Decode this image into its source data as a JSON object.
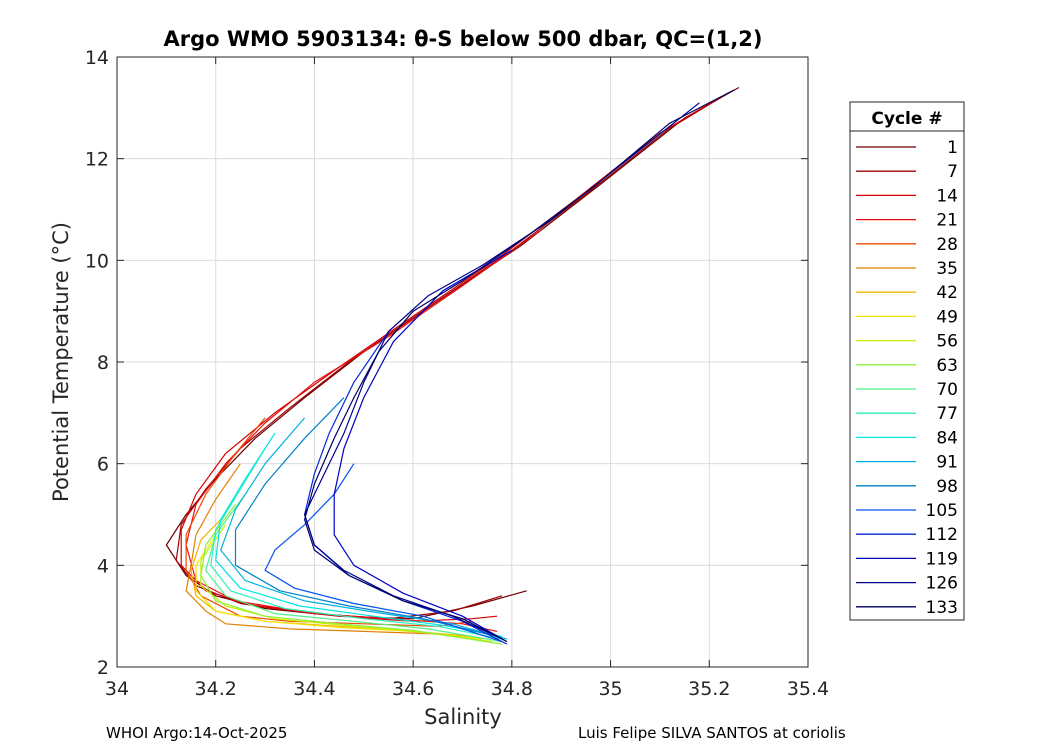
{
  "chart_data": {
    "type": "line",
    "title": "Argo WMO 5903134: θ-S below 500 dbar,  QC=(1,2)",
    "xlabel": "Salinity",
    "ylabel": "Potential Temperature (°C)",
    "xlim": [
      34,
      35.4
    ],
    "ylim": [
      2,
      14
    ],
    "xticks": [
      "34",
      "34.2",
      "34.4",
      "34.6",
      "34.8",
      "35",
      "35.2",
      "35.4"
    ],
    "yticks": [
      "2",
      "4",
      "6",
      "8",
      "10",
      "12",
      "14"
    ],
    "grid": true,
    "legend": {
      "title": "Cycle #",
      "placement": "right-outside",
      "entries": [
        {
          "label": "1",
          "color": "#6e0000"
        },
        {
          "label": "7",
          "color": "#a00000"
        },
        {
          "label": "14",
          "color": "#d40000"
        },
        {
          "label": "21",
          "color": "#e81010"
        },
        {
          "label": "28",
          "color": "#f04a00"
        },
        {
          "label": "35",
          "color": "#e08000"
        },
        {
          "label": "42",
          "color": "#f0b400"
        },
        {
          "label": "49",
          "color": "#f0e600"
        },
        {
          "label": "56",
          "color": "#c8f000"
        },
        {
          "label": "63",
          "color": "#8cf03c"
        },
        {
          "label": "70",
          "color": "#50f08c"
        },
        {
          "label": "77",
          "color": "#28f0be"
        },
        {
          "label": "84",
          "color": "#00e6e6"
        },
        {
          "label": "91",
          "color": "#00b4dc"
        },
        {
          "label": "98",
          "color": "#0082c8"
        },
        {
          "label": "105",
          "color": "#0050f0"
        },
        {
          "label": "112",
          "color": "#0028dc"
        },
        {
          "label": "119",
          "color": "#0000c8"
        },
        {
          "label": "126",
          "color": "#00008c"
        },
        {
          "label": "133",
          "color": "#000064"
        }
      ]
    },
    "series": [
      {
        "name": "1",
        "color": "#6e0000",
        "points": [
          [
            35.26,
            13.4
          ],
          [
            35.15,
            12.8
          ],
          [
            34.98,
            11.5
          ],
          [
            34.82,
            10.3
          ],
          [
            34.65,
            9.2
          ],
          [
            34.5,
            8.2
          ],
          [
            34.38,
            7.3
          ],
          [
            34.28,
            6.5
          ],
          [
            34.2,
            5.7
          ],
          [
            34.14,
            5.0
          ],
          [
            34.1,
            4.4
          ],
          [
            34.14,
            3.8
          ],
          [
            34.2,
            3.4
          ],
          [
            34.3,
            3.15
          ],
          [
            34.45,
            3.0
          ],
          [
            34.6,
            2.95
          ],
          [
            34.72,
            3.2
          ],
          [
            34.83,
            3.5
          ]
        ]
      },
      {
        "name": "7",
        "color": "#a00000",
        "points": [
          [
            35.24,
            13.3
          ],
          [
            35.12,
            12.6
          ],
          [
            34.95,
            11.3
          ],
          [
            34.8,
            10.2
          ],
          [
            34.62,
            9.0
          ],
          [
            34.47,
            8.0
          ],
          [
            34.35,
            7.1
          ],
          [
            34.25,
            6.3
          ],
          [
            34.18,
            5.5
          ],
          [
            34.13,
            4.8
          ],
          [
            34.12,
            4.1
          ],
          [
            34.16,
            3.6
          ],
          [
            34.25,
            3.25
          ],
          [
            34.4,
            3.05
          ],
          [
            34.55,
            2.95
          ],
          [
            34.68,
            3.1
          ],
          [
            34.78,
            3.4
          ]
        ]
      },
      {
        "name": "14",
        "color": "#d40000",
        "points": [
          [
            35.22,
            13.2
          ],
          [
            35.1,
            12.5
          ],
          [
            34.93,
            11.2
          ],
          [
            34.78,
            10.1
          ],
          [
            34.6,
            8.9
          ],
          [
            34.45,
            7.9
          ],
          [
            34.32,
            7.0
          ],
          [
            34.22,
            6.2
          ],
          [
            34.16,
            5.4
          ],
          [
            34.13,
            4.7
          ],
          [
            34.13,
            4.0
          ],
          [
            34.18,
            3.5
          ],
          [
            34.28,
            3.2
          ],
          [
            34.45,
            3.0
          ],
          [
            34.6,
            2.9
          ],
          [
            34.72,
            2.95
          ],
          [
            34.77,
            3.0
          ]
        ]
      },
      {
        "name": "21",
        "color": "#e81010",
        "points": [
          [
            34.86,
            10.6
          ],
          [
            34.7,
            9.5
          ],
          [
            34.55,
            8.5
          ],
          [
            34.4,
            7.6
          ],
          [
            34.3,
            6.8
          ],
          [
            34.22,
            6.0
          ],
          [
            34.16,
            5.2
          ],
          [
            34.14,
            4.4
          ],
          [
            34.16,
            3.7
          ],
          [
            34.24,
            3.3
          ],
          [
            34.4,
            3.05
          ],
          [
            34.55,
            2.95
          ],
          [
            34.7,
            2.85
          ],
          [
            34.77,
            2.7
          ]
        ]
      },
      {
        "name": "28",
        "color": "#f04a00",
        "points": [
          [
            34.3,
            6.9
          ],
          [
            34.24,
            6.2
          ],
          [
            34.18,
            5.4
          ],
          [
            34.14,
            4.6
          ],
          [
            34.14,
            3.9
          ],
          [
            34.17,
            3.4
          ],
          [
            34.25,
            3.0
          ],
          [
            34.35,
            2.9
          ],
          [
            34.5,
            2.85
          ],
          [
            34.65,
            2.8
          ],
          [
            34.72,
            2.9
          ]
        ]
      },
      {
        "name": "35",
        "color": "#e08000",
        "points": [
          [
            34.25,
            6.0
          ],
          [
            34.2,
            5.3
          ],
          [
            34.16,
            4.6
          ],
          [
            34.15,
            4.0
          ],
          [
            34.14,
            3.5
          ],
          [
            34.18,
            3.1
          ],
          [
            34.22,
            2.85
          ],
          [
            34.35,
            2.75
          ],
          [
            34.5,
            2.7
          ],
          [
            34.65,
            2.65
          ],
          [
            34.7,
            2.6
          ]
        ]
      },
      {
        "name": "42",
        "color": "#f0b400",
        "points": [
          [
            34.22,
            5.0
          ],
          [
            34.17,
            4.5
          ],
          [
            34.15,
            3.9
          ],
          [
            34.16,
            3.4
          ],
          [
            34.2,
            3.1
          ],
          [
            34.3,
            2.9
          ],
          [
            34.45,
            2.8
          ],
          [
            34.6,
            2.7
          ],
          [
            34.72,
            2.6
          ]
        ]
      },
      {
        "name": "49",
        "color": "#f0e600",
        "points": [
          [
            34.2,
            4.6
          ],
          [
            34.16,
            4.0
          ],
          [
            34.16,
            3.5
          ],
          [
            34.2,
            3.1
          ],
          [
            34.3,
            2.9
          ],
          [
            34.45,
            2.78
          ],
          [
            34.6,
            2.7
          ],
          [
            34.74,
            2.55
          ]
        ]
      },
      {
        "name": "56",
        "color": "#c8f000",
        "points": [
          [
            34.22,
            4.8
          ],
          [
            34.17,
            4.1
          ],
          [
            34.17,
            3.6
          ],
          [
            34.22,
            3.2
          ],
          [
            34.32,
            2.95
          ],
          [
            34.48,
            2.8
          ],
          [
            34.62,
            2.68
          ],
          [
            34.76,
            2.5
          ]
        ]
      },
      {
        "name": "63",
        "color": "#8cf03c",
        "points": [
          [
            34.24,
            5.2
          ],
          [
            34.18,
            4.4
          ],
          [
            34.17,
            3.8
          ],
          [
            34.2,
            3.3
          ],
          [
            34.3,
            3.0
          ],
          [
            34.45,
            2.85
          ],
          [
            34.6,
            2.72
          ],
          [
            34.78,
            2.45
          ]
        ]
      },
      {
        "name": "70",
        "color": "#50f08c",
        "points": [
          [
            34.26,
            5.4
          ],
          [
            34.2,
            4.6
          ],
          [
            34.18,
            3.9
          ],
          [
            34.22,
            3.4
          ],
          [
            34.32,
            3.05
          ],
          [
            34.48,
            2.9
          ],
          [
            34.63,
            2.75
          ],
          [
            34.78,
            2.5
          ]
        ]
      },
      {
        "name": "77",
        "color": "#28f0be",
        "points": [
          [
            34.3,
            6.3
          ],
          [
            34.25,
            5.5
          ],
          [
            34.2,
            4.7
          ],
          [
            34.19,
            4.0
          ],
          [
            34.23,
            3.5
          ],
          [
            34.34,
            3.15
          ],
          [
            34.5,
            2.95
          ],
          [
            34.65,
            2.8
          ],
          [
            34.78,
            2.55
          ]
        ]
      },
      {
        "name": "84",
        "color": "#00e6e6",
        "points": [
          [
            34.32,
            6.6
          ],
          [
            34.26,
            5.7
          ],
          [
            34.21,
            4.9
          ],
          [
            34.2,
            4.1
          ],
          [
            34.25,
            3.55
          ],
          [
            34.37,
            3.2
          ],
          [
            34.52,
            3.0
          ],
          [
            34.66,
            2.82
          ],
          [
            34.78,
            2.6
          ]
        ]
      },
      {
        "name": "91",
        "color": "#00b4dc",
        "points": [
          [
            34.38,
            6.9
          ],
          [
            34.3,
            6.0
          ],
          [
            34.24,
            5.1
          ],
          [
            34.21,
            4.3
          ],
          [
            34.26,
            3.7
          ],
          [
            34.38,
            3.3
          ],
          [
            34.54,
            3.05
          ],
          [
            34.68,
            2.85
          ],
          [
            34.79,
            2.55
          ]
        ]
      },
      {
        "name": "98",
        "color": "#0082c8",
        "points": [
          [
            34.46,
            7.3
          ],
          [
            34.38,
            6.5
          ],
          [
            34.3,
            5.6
          ],
          [
            34.24,
            4.7
          ],
          [
            34.24,
            4.0
          ],
          [
            34.33,
            3.5
          ],
          [
            34.47,
            3.2
          ],
          [
            34.62,
            2.95
          ],
          [
            34.77,
            2.6
          ]
        ]
      },
      {
        "name": "105",
        "color": "#0050f0",
        "points": [
          [
            34.48,
            6.0
          ],
          [
            34.44,
            5.4
          ],
          [
            34.38,
            4.8
          ],
          [
            34.32,
            4.3
          ],
          [
            34.3,
            3.9
          ],
          [
            34.36,
            3.55
          ],
          [
            34.48,
            3.25
          ],
          [
            34.62,
            3.0
          ],
          [
            34.78,
            2.5
          ]
        ]
      },
      {
        "name": "112",
        "color": "#0028dc",
        "points": [
          [
            34.55,
            8.6
          ],
          [
            34.48,
            7.6
          ],
          [
            34.43,
            6.6
          ],
          [
            34.4,
            5.8
          ],
          [
            34.38,
            5.0
          ],
          [
            34.4,
            4.4
          ],
          [
            34.47,
            3.8
          ],
          [
            34.58,
            3.3
          ],
          [
            34.7,
            2.9
          ],
          [
            34.79,
            2.45
          ]
        ]
      },
      {
        "name": "119",
        "color": "#0000c8",
        "points": [
          [
            34.8,
            10.2
          ],
          [
            34.66,
            9.4
          ],
          [
            34.56,
            8.4
          ],
          [
            34.5,
            7.3
          ],
          [
            34.46,
            6.3
          ],
          [
            34.44,
            5.4
          ],
          [
            34.44,
            4.6
          ],
          [
            34.48,
            4.0
          ],
          [
            34.58,
            3.45
          ],
          [
            34.7,
            3.0
          ],
          [
            34.79,
            2.5
          ]
        ]
      },
      {
        "name": "126",
        "color": "#00008c",
        "points": [
          [
            35.18,
            13.1
          ],
          [
            35.05,
            12.1
          ],
          [
            34.88,
            10.8
          ],
          [
            34.74,
            9.9
          ],
          [
            34.63,
            9.3
          ],
          [
            34.55,
            8.6
          ],
          [
            34.5,
            7.6
          ],
          [
            34.46,
            6.6
          ],
          [
            34.42,
            5.8
          ],
          [
            34.38,
            5.0
          ],
          [
            34.4,
            4.4
          ],
          [
            34.46,
            3.9
          ],
          [
            34.56,
            3.4
          ],
          [
            34.68,
            3.0
          ],
          [
            34.78,
            2.55
          ]
        ]
      },
      {
        "name": "133",
        "color": "#000064",
        "points": [
          [
            35.25,
            13.35
          ],
          [
            35.12,
            12.7
          ],
          [
            34.96,
            11.4
          ],
          [
            34.82,
            10.4
          ],
          [
            34.7,
            9.6
          ],
          [
            34.6,
            9.0
          ],
          [
            34.53,
            8.2
          ],
          [
            34.48,
            7.3
          ],
          [
            34.44,
            6.5
          ],
          [
            34.4,
            5.6
          ],
          [
            34.38,
            4.9
          ],
          [
            34.4,
            4.3
          ],
          [
            34.47,
            3.8
          ],
          [
            34.58,
            3.3
          ],
          [
            34.7,
            2.95
          ],
          [
            34.79,
            2.5
          ]
        ]
      }
    ]
  },
  "footer": {
    "left": "WHOI Argo:14-Oct-2025",
    "right": "Luis Felipe SILVA SANTOS at coriolis"
  }
}
